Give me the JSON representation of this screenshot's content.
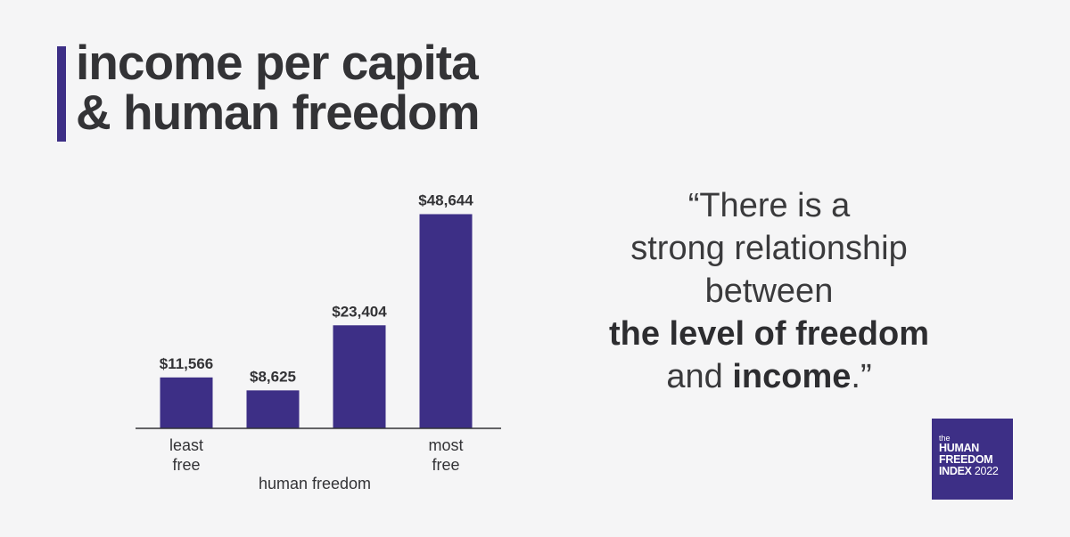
{
  "title": {
    "line1": "income per capita",
    "line2": "& human freedom"
  },
  "colors": {
    "accent": "#3d2f86",
    "text": "#333336",
    "background": "#f5f5f6"
  },
  "chart_data": {
    "type": "bar",
    "categories": [
      "least free",
      "",
      "",
      "most free"
    ],
    "category_label_lines": [
      [
        "least",
        "free"
      ],
      [],
      [],
      [
        "most",
        "free"
      ]
    ],
    "values": [
      11566,
      8625,
      23404,
      48644
    ],
    "value_labels": [
      "$11,566",
      "$8,625",
      "$23,404",
      "$48,644"
    ],
    "title": "",
    "xlabel": "human freedom",
    "ylabel": "",
    "ylim": [
      0,
      54000
    ],
    "grid": false,
    "legend": "none",
    "bar_color": "#3d2f86"
  },
  "quote": {
    "open": "“There is a",
    "line2": "strong relationship",
    "line3": "between",
    "bold1": "the level of freedom",
    "and": "and ",
    "bold2": "income",
    "close": ".”"
  },
  "logo": {
    "the": "the",
    "line1": "HUMAN",
    "line2": "FREEDOM",
    "line3": "INDEX",
    "year": "2022"
  }
}
